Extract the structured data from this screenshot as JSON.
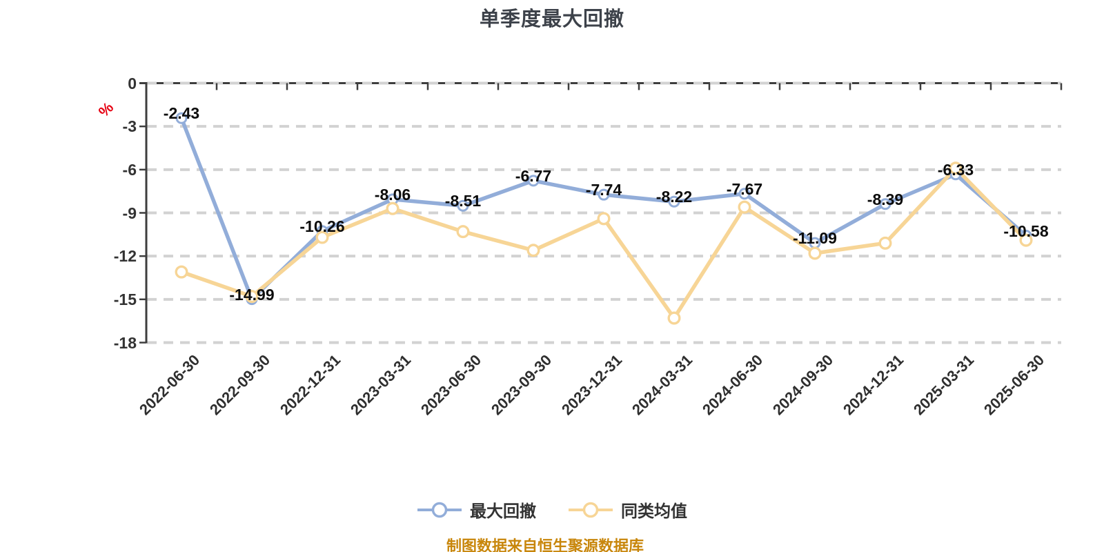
{
  "chart_data": {
    "type": "line",
    "title": "单季度最大回撤",
    "y_unit": "%",
    "categories": [
      "2022-06-30",
      "2022-09-30",
      "2022-12-31",
      "2023-03-31",
      "2023-06-30",
      "2023-09-30",
      "2023-12-31",
      "2024-03-31",
      "2024-06-30",
      "2024-09-30",
      "2024-12-31",
      "2025-03-31",
      "2025-06-30"
    ],
    "series": [
      {
        "name": "最大回撤",
        "color": "#92ADD9",
        "marker_fill": "#ffffff",
        "show_labels": true,
        "values": [
          -2.43,
          -14.99,
          -10.26,
          -8.06,
          -8.51,
          -6.77,
          -7.74,
          -8.22,
          -7.67,
          -11.09,
          -8.39,
          -6.33,
          -10.58
        ]
      },
      {
        "name": "同类均值",
        "color": "#F7D596",
        "marker_fill": "#ffffff",
        "show_labels": false,
        "values": [
          -13.1,
          -14.8,
          -10.7,
          -8.7,
          -10.3,
          -11.6,
          -9.4,
          -16.3,
          -8.6,
          -11.8,
          -11.1,
          -5.9,
          -10.9
        ]
      }
    ],
    "y_ticks": [
      0,
      -3,
      -6,
      -9,
      -12,
      -15,
      -18
    ],
    "ylim": [
      -18,
      0
    ],
    "grid": "dashed-horizontal",
    "x_label_rotation": 45,
    "legend_position": "bottom"
  },
  "footer": {
    "source_note": "制图数据来自恒生聚源数据库"
  },
  "colors": {
    "grid": "#d2d2d2",
    "axis": "#3e3e3e",
    "title": "#3d424a",
    "tick_text": "#333333",
    "data_label": "#0c0c0c",
    "unit_red": "#e60012",
    "source_text": "#c8860b",
    "background": "#ffffff"
  }
}
